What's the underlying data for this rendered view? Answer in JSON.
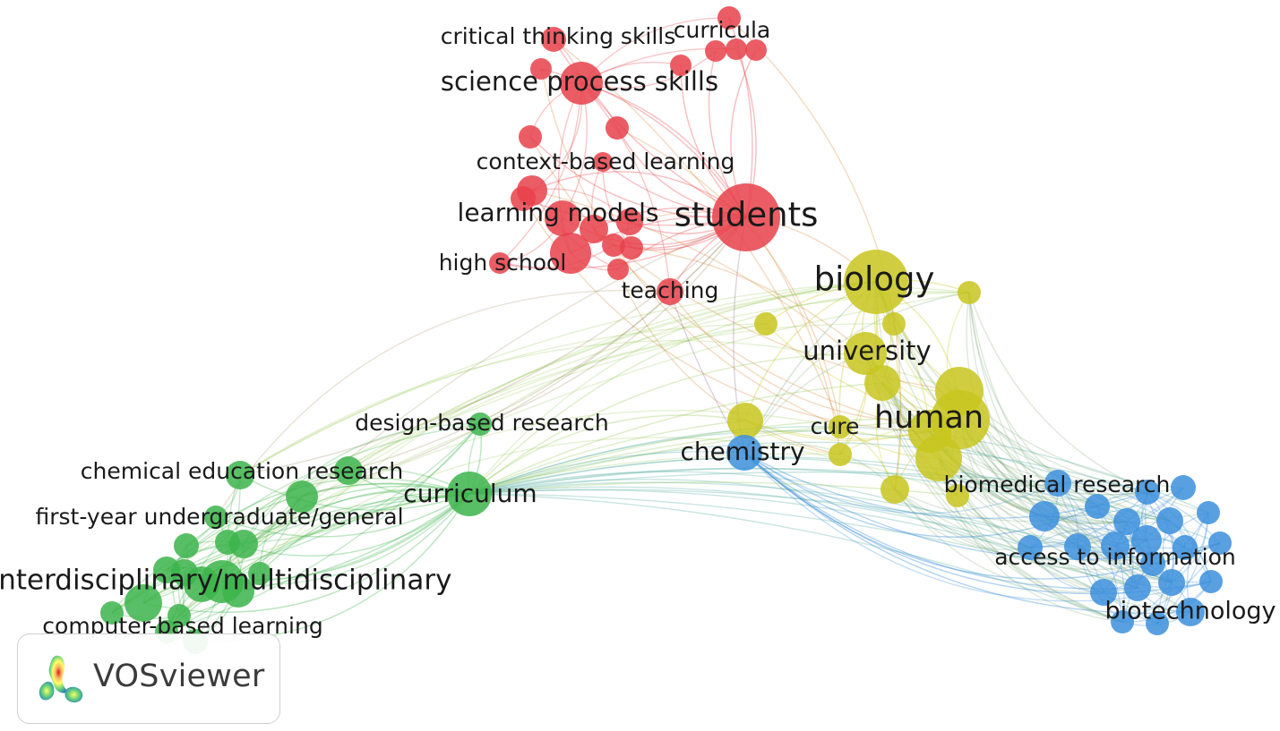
{
  "app": {
    "name": "VOSviewer"
  },
  "palette": {
    "red": "#e8414a",
    "green": "#3cb44b",
    "yellow": "#c8c61e",
    "blue": "#3c8fdc"
  },
  "clusters": [
    {
      "name": "red",
      "color": "#e8414a"
    },
    {
      "name": "green",
      "color": "#3cb44b"
    },
    {
      "name": "yellow",
      "color": "#c8c61e"
    },
    {
      "name": "blue",
      "color": "#3c8fdc"
    }
  ],
  "labels": {
    "students": "students",
    "science_process_skills": "science process skills",
    "critical_thinking_skills": "critical thinking skills",
    "curricula": "curricula",
    "context_based_learning": "context-based learning",
    "learning_models": "learning models",
    "high_school": "high school",
    "teaching": "teaching",
    "biology": "biology",
    "university": "university",
    "human": "human",
    "cure": "cure",
    "chemistry": "chemistry",
    "biomedical_research": "biomedical research",
    "access_to_information": "access to information",
    "biotechnology": "biotechnology",
    "design_based_research": "design-based research",
    "curriculum": "curriculum",
    "chemical_education_research": "chemical education research",
    "first_year": "first-year undergraduate/general",
    "interdisciplinary": "interdisciplinary/multidisciplinary",
    "computer_based_learning": "computer-based learning"
  }
}
